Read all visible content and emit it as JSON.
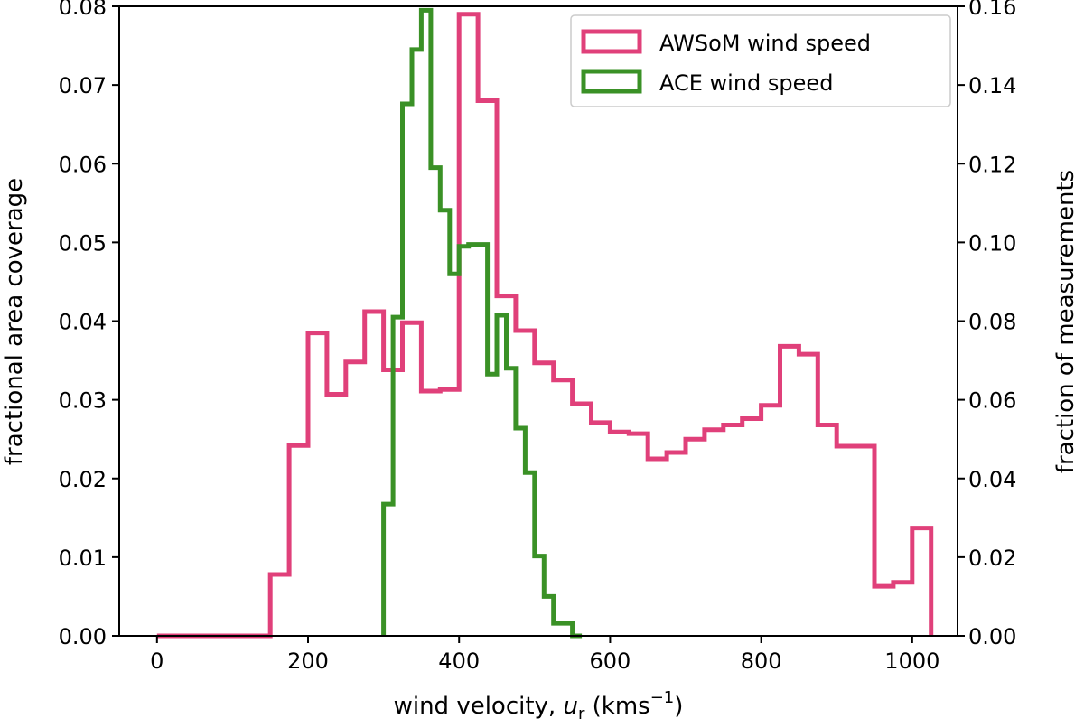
{
  "chart_data": {
    "type": "histogram",
    "xlabel_prefix": "wind velocity, ",
    "xlabel_var": "u",
    "xlabel_sub": "r",
    "xlabel_unit_open": " (kms",
    "xlabel_unit_exp": "−1",
    "xlabel_unit_close": ")",
    "ylabel_left": "fractional area coverage",
    "ylabel_right": "fraction of measurements",
    "xlim": [
      -50,
      1060
    ],
    "ylim_left": [
      0,
      0.08
    ],
    "ylim_right": [
      0,
      0.16
    ],
    "xticks": [
      0,
      200,
      400,
      600,
      800,
      1000
    ],
    "xtick_labels": [
      "0",
      "200",
      "400",
      "600",
      "800",
      "1000"
    ],
    "yticks_left": [
      0,
      0.01,
      0.02,
      0.03,
      0.04,
      0.05,
      0.06,
      0.07,
      0.08
    ],
    "ytick_labels_left": [
      "0.00",
      "0.01",
      "0.02",
      "0.03",
      "0.04",
      "0.05",
      "0.06",
      "0.07",
      "0.08"
    ],
    "yticks_right": [
      0,
      0.02,
      0.04,
      0.06,
      0.08,
      0.1,
      0.12,
      0.14,
      0.16
    ],
    "ytick_labels_right": [
      "0.00",
      "0.02",
      "0.04",
      "0.06",
      "0.08",
      "0.10",
      "0.12",
      "0.14",
      "0.16"
    ],
    "legend_position": "top-right",
    "series": [
      {
        "name": "AWSoM wind speed",
        "axis": "left",
        "color": "#e0407a",
        "edges": [
          0,
          150,
          175,
          200,
          225,
          250,
          275,
          300,
          325,
          350,
          375,
          400,
          425,
          450,
          475,
          500,
          525,
          550,
          575,
          600,
          625,
          650,
          675,
          700,
          725,
          750,
          775,
          800,
          825,
          850,
          875,
          900,
          925,
          950,
          975,
          1000,
          1025
        ],
        "values": [
          0.0,
          0.0078,
          0.0242,
          0.0385,
          0.0307,
          0.0348,
          0.0412,
          0.0338,
          0.0398,
          0.0311,
          0.0313,
          0.079,
          0.068,
          0.0432,
          0.0388,
          0.0347,
          0.0325,
          0.0295,
          0.0271,
          0.0259,
          0.0257,
          0.0225,
          0.0233,
          0.025,
          0.0262,
          0.0268,
          0.0276,
          0.0293,
          0.0368,
          0.0358,
          0.0268,
          0.0241,
          0.0241,
          0.0063,
          0.0068,
          0.0137
        ]
      },
      {
        "name": "ACE wind speed",
        "axis": "right",
        "color": "#3a9126",
        "edges": [
          300,
          312.5,
          325,
          337.5,
          350,
          362.5,
          375,
          387.5,
          400,
          412.5,
          425,
          437.5,
          450,
          462.5,
          475,
          487.5,
          500,
          512.5,
          525,
          537.5,
          550,
          562.5
        ],
        "values": [
          0.0335,
          0.081,
          0.1352,
          0.149,
          0.159,
          0.119,
          0.1082,
          0.092,
          0.099,
          0.0995,
          0.0995,
          0.0665,
          0.0815,
          0.068,
          0.0528,
          0.0415,
          0.0203,
          0.01,
          0.0032,
          0.0032,
          0.0
        ]
      }
    ]
  }
}
